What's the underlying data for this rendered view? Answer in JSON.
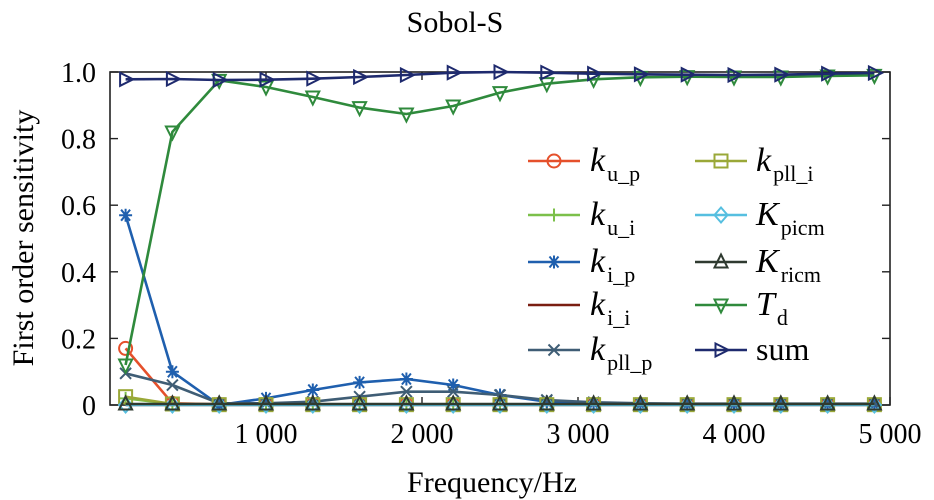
{
  "chart_data": {
    "type": "line",
    "title": "Sobol-S",
    "xlabel": "Frequency/Hz",
    "ylabel": "First order sensitivity",
    "xlim": [
      0,
      5000
    ],
    "ylim": [
      0,
      1.0
    ],
    "xticks": [
      1000,
      2000,
      3000,
      4000,
      5000
    ],
    "xtick_labels": [
      "1 000",
      "2 000",
      "3 000",
      "4 000",
      "5 000"
    ],
    "yticks": [
      0,
      0.2,
      0.4,
      0.6,
      0.8,
      1.0
    ],
    "ytick_labels": [
      "0",
      "0.2",
      "0.4",
      "0.6",
      "0.8",
      "1.0"
    ],
    "grid": false,
    "legend_placement": "center-right",
    "x": [
      100,
      400,
      700,
      1000,
      1300,
      1600,
      1900,
      2200,
      2500,
      2800,
      3100,
      3400,
      3700,
      4000,
      4300,
      4600,
      4900
    ],
    "series": [
      {
        "name_base": "k",
        "name_sub": "u_p",
        "color": "#e5502b",
        "marker": "circle",
        "values": [
          0.17,
          0.005,
          0.002,
          0.001,
          0.001,
          0.001,
          0.001,
          0.001,
          0.001,
          0.001,
          0.001,
          0.001,
          0.001,
          0.001,
          0.001,
          0.001,
          0.001
        ]
      },
      {
        "name_base": "k",
        "name_sub": "u_i",
        "color": "#7cc04a",
        "marker": "plus",
        "values": [
          0.02,
          0.003,
          0.002,
          0.002,
          0.002,
          0.002,
          0.002,
          0.002,
          0.002,
          0.002,
          0.002,
          0.002,
          0.002,
          0.002,
          0.002,
          0.002,
          0.002
        ]
      },
      {
        "name_base": "k",
        "name_sub": "i_p",
        "color": "#1f5fae",
        "marker": "asterisk",
        "values": [
          0.57,
          0.1,
          0.0,
          0.02,
          0.045,
          0.068,
          0.078,
          0.06,
          0.03,
          0.01,
          0.005,
          0.003,
          0.002,
          0.002,
          0.002,
          0.002,
          0.002
        ]
      },
      {
        "name_base": "k",
        "name_sub": "i_i",
        "color": "#7a1e12",
        "marker": "none",
        "values": [
          0.0,
          0.0,
          0.0,
          0.0,
          0.0,
          0.0,
          0.0,
          0.0,
          0.0,
          0.0,
          0.0,
          0.0,
          0.0,
          0.0,
          0.0,
          0.0,
          0.0
        ]
      },
      {
        "name_base": "k",
        "name_sub": "pll_p",
        "color": "#3f5d75",
        "marker": "x",
        "values": [
          0.095,
          0.06,
          0.005,
          0.005,
          0.01,
          0.025,
          0.04,
          0.04,
          0.03,
          0.015,
          0.008,
          0.005,
          0.004,
          0.004,
          0.004,
          0.004,
          0.004
        ]
      },
      {
        "name_base": "k",
        "name_sub": "pll_i",
        "color": "#9aa838",
        "marker": "square",
        "values": [
          0.025,
          0.003,
          0.001,
          0.001,
          0.001,
          0.001,
          0.001,
          0.001,
          0.001,
          0.001,
          0.001,
          0.001,
          0.001,
          0.001,
          0.001,
          0.001,
          0.001
        ]
      },
      {
        "name_base": "K",
        "name_sub": "picm",
        "color": "#56bfe0",
        "marker": "diamond",
        "values": [
          0.0,
          0.0,
          0.0,
          0.0,
          0.0,
          0.0,
          0.0,
          0.0,
          0.0,
          0.0,
          0.0,
          0.0,
          0.0,
          0.0,
          0.0,
          0.0,
          0.0
        ]
      },
      {
        "name_base": "K",
        "name_sub": "ricm",
        "color": "#2f3a30",
        "marker": "triangle-up",
        "values": [
          0.003,
          0.003,
          0.003,
          0.003,
          0.003,
          0.003,
          0.003,
          0.003,
          0.003,
          0.003,
          0.003,
          0.003,
          0.003,
          0.003,
          0.003,
          0.003,
          0.003
        ]
      },
      {
        "name_base": "T",
        "name_sub": "d",
        "color": "#2f8a3c",
        "marker": "triangle-down",
        "values": [
          0.12,
          0.82,
          0.975,
          0.955,
          0.925,
          0.893,
          0.874,
          0.898,
          0.938,
          0.965,
          0.978,
          0.984,
          0.986,
          0.985,
          0.985,
          0.988,
          0.99
        ]
      },
      {
        "name_base": "",
        "name_sub": "",
        "name_plain": "sum",
        "color": "#1e2a6e",
        "marker": "triangle-right",
        "values": [
          0.978,
          0.979,
          0.976,
          0.977,
          0.98,
          0.985,
          0.991,
          0.998,
          1.0,
          0.998,
          0.995,
          0.993,
          0.992,
          0.991,
          0.992,
          0.995,
          0.997
        ]
      }
    ]
  }
}
